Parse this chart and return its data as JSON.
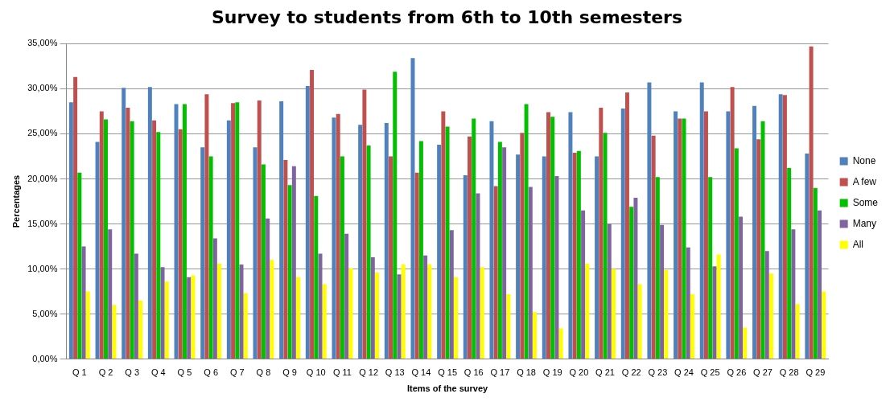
{
  "chart_data": {
    "type": "bar",
    "title": "Survey to students from 6th to 10th semesters",
    "xlabel": "Items of the survey",
    "ylabel": "Percentages",
    "categories": [
      "Q 1",
      "Q 2",
      "Q 3",
      "Q 4",
      "Q 5",
      "Q 6",
      "Q 7",
      "Q 8",
      "Q 9",
      "Q 10",
      "Q 11",
      "Q 12",
      "Q 13",
      "Q 14",
      "Q 15",
      "Q 16",
      "Q 17",
      "Q 18",
      "Q 19",
      "Q 20",
      "Q 21",
      "Q 22",
      "Q 23",
      "Q 24",
      "Q 25",
      "Q 26",
      "Q 27",
      "Q 28",
      "Q 29"
    ],
    "series": [
      {
        "name": "None",
        "color": "#4f81bd",
        "values": [
          28.5,
          24.1,
          30.1,
          30.2,
          28.3,
          23.5,
          26.5,
          23.5,
          28.6,
          30.3,
          26.8,
          26.0,
          26.2,
          33.4,
          23.8,
          20.4,
          26.4,
          22.7,
          22.5,
          27.4,
          22.5,
          27.8,
          30.7,
          27.5,
          30.7,
          27.5,
          28.1,
          29.4,
          22.8
        ]
      },
      {
        "name": "A few",
        "color": "#c0504d",
        "values": [
          31.3,
          27.5,
          27.9,
          26.5,
          25.5,
          29.4,
          28.4,
          28.7,
          22.1,
          32.1,
          27.2,
          29.9,
          22.5,
          20.7,
          27.5,
          24.7,
          19.2,
          25.1,
          27.4,
          22.9,
          27.9,
          29.6,
          24.8,
          26.7,
          27.5,
          30.2,
          24.4,
          29.3,
          34.7
        ]
      },
      {
        "name": "Some",
        "color": "#00c000",
        "values": [
          20.7,
          26.6,
          26.4,
          25.2,
          28.3,
          22.5,
          28.5,
          21.6,
          19.3,
          18.1,
          22.5,
          23.7,
          31.9,
          24.2,
          25.8,
          26.7,
          24.1,
          28.3,
          26.9,
          23.1,
          25.1,
          16.9,
          20.2,
          26.7,
          20.2,
          23.4,
          26.4,
          21.2,
          19.0
        ]
      },
      {
        "name": "Many",
        "color": "#8064a2",
        "values": [
          12.5,
          14.4,
          11.7,
          10.2,
          9.1,
          13.4,
          10.5,
          15.6,
          21.4,
          11.7,
          13.9,
          11.3,
          9.4,
          11.5,
          14.3,
          18.4,
          23.5,
          19.1,
          20.3,
          16.5,
          15.0,
          17.9,
          14.9,
          12.4,
          10.3,
          15.8,
          12.0,
          14.4,
          16.5
        ]
      },
      {
        "name": "All",
        "color": "#ffff00",
        "values": [
          7.5,
          6.0,
          6.5,
          8.6,
          9.3,
          10.6,
          7.3,
          11.0,
          9.1,
          8.3,
          10.1,
          9.6,
          10.5,
          10.5,
          9.1,
          10.2,
          7.2,
          5.2,
          3.4,
          10.6,
          10.0,
          8.3,
          9.9,
          7.2,
          11.6,
          3.5,
          9.5,
          6.1,
          7.5
        ]
      }
    ],
    "ylim": [
      0,
      35
    ],
    "yticks": [
      {
        "value": 0,
        "label": "0,00%"
      },
      {
        "value": 5,
        "label": "5,00%"
      },
      {
        "value": 10,
        "label": "10,00%"
      },
      {
        "value": 15,
        "label": "15,00%"
      },
      {
        "value": 20,
        "label": "20,00%"
      },
      {
        "value": 25,
        "label": "25,00%"
      },
      {
        "value": 30,
        "label": "30,00%"
      },
      {
        "value": 35,
        "label": "35,00%"
      }
    ],
    "grid": "y",
    "legend": "right"
  }
}
